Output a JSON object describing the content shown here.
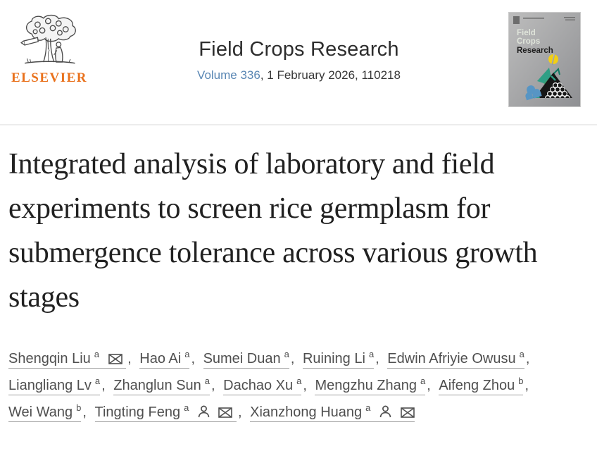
{
  "publisher": {
    "wordmark": "ELSEVIER"
  },
  "journal": {
    "name": "Field Crops Research",
    "volume_link": "Volume 336",
    "issue_details": ", 1 February 2026, 110218",
    "cover": {
      "title_line1": "Field",
      "title_line2": "Crops",
      "title_line3": "Research"
    }
  },
  "article": {
    "title": "Integrated analysis of laboratory and field experiments to screen rice germplasm for submergence tolerance across various growth stages",
    "authors": [
      {
        "name": "Shengqin Liu",
        "affiliation_sup": "a",
        "icons": [
          "email"
        ]
      },
      {
        "name": "Hao Ai",
        "affiliation_sup": "a",
        "icons": []
      },
      {
        "name": "Sumei Duan",
        "affiliation_sup": "a",
        "icons": []
      },
      {
        "name": "Ruining Li",
        "affiliation_sup": "a",
        "icons": []
      },
      {
        "name": "Edwin Afriyie Owusu",
        "affiliation_sup": "a",
        "icons": []
      },
      {
        "name": "Liangliang Lv",
        "affiliation_sup": "a",
        "icons": []
      },
      {
        "name": "Zhanglun Sun",
        "affiliation_sup": "a",
        "icons": []
      },
      {
        "name": "Dachao Xu",
        "affiliation_sup": "a",
        "icons": []
      },
      {
        "name": "Mengzhu Zhang",
        "affiliation_sup": "a",
        "icons": []
      },
      {
        "name": "Aifeng Zhou",
        "affiliation_sup": "b",
        "icons": []
      },
      {
        "name": "Wei Wang",
        "affiliation_sup": "b",
        "icons": []
      },
      {
        "name": "Tingting Feng",
        "affiliation_sup": "a",
        "icons": [
          "person",
          "email"
        ]
      },
      {
        "name": "Xianzhong Huang",
        "affiliation_sup": "a",
        "icons": [
          "person",
          "email"
        ]
      }
    ],
    "author_separator": ", "
  },
  "colors": {
    "elsevier_orange": "#E9711C",
    "link_blue": "#5a87b4",
    "title_ink": "#212121",
    "author_gray": "#4f4f4f",
    "divider_gray": "#ececec"
  }
}
